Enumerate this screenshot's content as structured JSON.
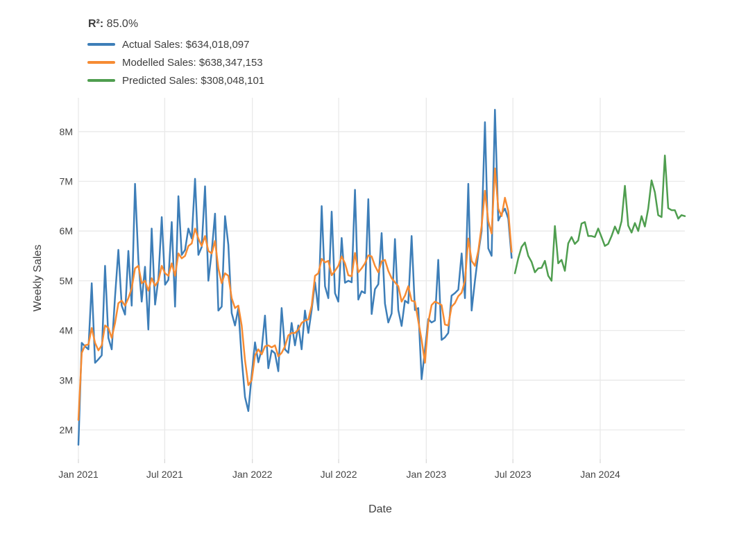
{
  "annotation": {
    "r2_label": "R²:",
    "r2_value": "85.0%"
  },
  "legend": {
    "items": [
      {
        "name": "actual",
        "label": "Actual Sales: $634,018,097",
        "color": "#3d7eb8"
      },
      {
        "name": "modelled",
        "label": "Modelled Sales: $638,347,153",
        "color": "#f68b33"
      },
      {
        "name": "predicted",
        "label": "Predicted Sales: $308,048,101",
        "color": "#4f9e4f"
      }
    ]
  },
  "chart_data": {
    "type": "line",
    "title": "",
    "xlabel": "Date",
    "ylabel": "Weekly Sales",
    "x_unit": "weeks (weekly cadence), week 0 = Jan 2021",
    "xlim_weeks": [
      0,
      182
    ],
    "ylim": [
      1.42,
      8.68
    ],
    "grid": true,
    "legend_position": "top-left",
    "annotations": {
      "r2": "85.0%"
    },
    "totals": {
      "actual_sales": "$634,018,097",
      "modelled_sales": "$638,347,153",
      "predicted_sales": "$308,048,101"
    },
    "y_ticks": [
      2,
      3,
      4,
      5,
      6,
      7,
      8
    ],
    "y_tick_labels": [
      "2M",
      "3M",
      "4M",
      "5M",
      "6M",
      "7M",
      "8M"
    ],
    "x_ticks": [
      {
        "week": 0,
        "label": "Jan 2021"
      },
      {
        "week": 25.9,
        "label": "Jul 2021"
      },
      {
        "week": 52.2,
        "label": "Jan 2022"
      },
      {
        "week": 78.1,
        "label": "Jul 2022"
      },
      {
        "week": 104.4,
        "label": "Jan 2023"
      },
      {
        "week": 130.4,
        "label": "Jul 2023"
      },
      {
        "week": 156.6,
        "label": "Jan 2024"
      }
    ],
    "series": [
      {
        "name": "Actual Sales",
        "color": "#3d7eb8",
        "start_week": 0,
        "values_unit": "millions USD per week",
        "values": [
          1.7,
          3.75,
          3.68,
          3.62,
          4.95,
          3.35,
          3.42,
          3.5,
          5.3,
          3.85,
          3.62,
          4.68,
          5.62,
          4.5,
          4.32,
          5.6,
          4.5,
          6.95,
          5.42,
          4.58,
          5.28,
          4.02,
          6.05,
          4.52,
          5.05,
          6.28,
          4.92,
          5.02,
          6.18,
          4.48,
          6.7,
          5.52,
          5.62,
          6.05,
          5.85,
          7.05,
          5.52,
          5.68,
          6.9,
          5.0,
          5.58,
          6.35,
          4.4,
          4.48,
          6.3,
          5.72,
          4.35,
          4.1,
          4.45,
          3.44,
          2.66,
          2.38,
          3.1,
          3.76,
          3.36,
          3.62,
          4.3,
          3.24,
          3.6,
          3.54,
          3.18,
          4.45,
          3.62,
          3.55,
          4.15,
          3.7,
          4.1,
          3.62,
          4.4,
          3.95,
          4.42,
          4.97,
          4.41,
          6.5,
          4.89,
          4.65,
          6.39,
          4.75,
          4.58,
          5.86,
          4.96,
          5.0,
          4.97,
          6.83,
          4.62,
          4.79,
          4.75,
          6.64,
          4.33,
          4.83,
          4.93,
          5.96,
          4.54,
          4.16,
          4.34,
          5.84,
          4.41,
          4.09,
          4.6,
          4.55,
          5.9,
          4.41,
          4.45,
          3.02,
          3.6,
          4.23,
          4.16,
          4.2,
          5.42,
          3.81,
          3.86,
          3.95,
          4.7,
          4.75,
          4.82,
          5.55,
          4.65,
          6.95,
          4.4,
          5.0,
          5.55,
          6.0,
          8.19,
          5.65,
          5.5,
          8.44,
          6.21,
          6.35,
          6.45,
          6.25,
          5.46
        ]
      },
      {
        "name": "Modelled Sales",
        "color": "#f68b33",
        "start_week": 0,
        "values_unit": "millions USD per week",
        "values": [
          2.2,
          3.55,
          3.7,
          3.72,
          4.05,
          3.75,
          3.6,
          3.7,
          4.1,
          4.05,
          3.85,
          4.15,
          4.55,
          4.6,
          4.5,
          4.65,
          4.85,
          5.25,
          5.3,
          4.95,
          5.0,
          4.8,
          5.05,
          4.9,
          5.0,
          5.3,
          5.15,
          5.1,
          5.35,
          5.1,
          5.55,
          5.45,
          5.5,
          5.7,
          5.75,
          6.05,
          5.85,
          5.7,
          5.9,
          5.6,
          5.55,
          5.8,
          5.25,
          4.95,
          5.15,
          5.1,
          4.65,
          4.45,
          4.5,
          4.1,
          3.4,
          2.9,
          3.0,
          3.5,
          3.62,
          3.52,
          3.68,
          3.7,
          3.66,
          3.7,
          3.48,
          3.55,
          3.68,
          3.9,
          3.95,
          3.95,
          4.02,
          4.15,
          4.2,
          4.22,
          4.5,
          5.1,
          5.15,
          5.44,
          5.37,
          5.4,
          5.11,
          5.2,
          5.3,
          5.49,
          5.35,
          5.11,
          5.09,
          5.56,
          5.17,
          5.25,
          5.35,
          5.51,
          5.49,
          5.3,
          5.17,
          5.39,
          5.42,
          5.2,
          5.05,
          4.97,
          4.89,
          4.58,
          4.7,
          4.89,
          4.6,
          4.58,
          4.19,
          3.81,
          3.35,
          4.16,
          4.51,
          4.58,
          4.55,
          4.51,
          4.12,
          4.1,
          4.48,
          4.55,
          4.69,
          4.76,
          5.0,
          5.85,
          5.4,
          5.3,
          5.6,
          6.1,
          6.81,
          6.2,
          5.95,
          7.26,
          6.45,
          6.3,
          6.67,
          6.4,
          5.58
        ]
      },
      {
        "name": "Predicted Sales",
        "color": "#4f9e4f",
        "start_week": 131,
        "values_unit": "millions USD per week",
        "values": [
          5.15,
          5.45,
          5.68,
          5.77,
          5.5,
          5.38,
          5.17,
          5.25,
          5.26,
          5.4,
          5.1,
          5.0,
          6.1,
          5.35,
          5.42,
          5.2,
          5.75,
          5.88,
          5.74,
          5.81,
          6.15,
          6.18,
          5.9,
          5.9,
          5.88,
          6.05,
          5.88,
          5.7,
          5.74,
          5.9,
          6.09,
          5.95,
          6.2,
          6.91,
          6.11,
          5.97,
          6.16,
          6.0,
          6.3,
          6.09,
          6.45,
          7.02,
          6.78,
          6.32,
          6.28,
          7.52,
          6.46,
          6.42,
          6.42,
          6.25,
          6.32,
          6.3
        ]
      }
    ]
  },
  "colors": {
    "grid": "#e9e9e9",
    "tick_text": "#444444",
    "axis_title_text": "#3f3f3f",
    "legend_text": "#3d3d3d",
    "background": "#ffffff"
  }
}
